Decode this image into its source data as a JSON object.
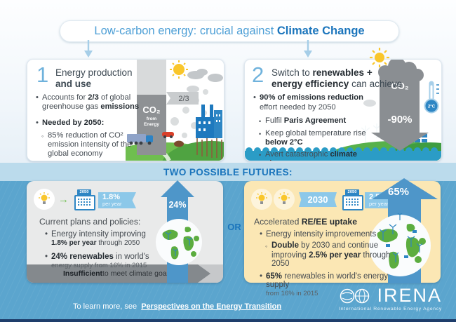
{
  "title": {
    "regular": "Low-carbon energy: crucial against ",
    "bold": "Climate Change"
  },
  "panel1": {
    "number": "1",
    "heading_line1": "Energy production",
    "heading_line2": "and use",
    "b1": [
      {
        "t": "Accounts for "
      },
      {
        "t": "2/3",
        "b": true
      },
      {
        "t": " of global greenhouse gas "
      },
      {
        "t": "emissions",
        "b": true
      }
    ],
    "b2": [
      {
        "t": "Needed by 2050:",
        "b": true
      }
    ],
    "s1": [
      {
        "t": "85% reduction of CO² emission intensity of the global economy"
      }
    ],
    "tower_gas": "CO₂",
    "tower_from": "from",
    "tower_energy": "Energy",
    "fraction": "2/3"
  },
  "panel2": {
    "number": "2",
    "heading_l1": [
      {
        "t": "Switch to "
      },
      {
        "t": "renewables +",
        "b": true
      }
    ],
    "heading_l2": [
      {
        "t": "energy efficiency",
        "b": true
      },
      {
        "t": " can achieve"
      }
    ],
    "b1_l1": [
      {
        "t": "90% of emissions reduction",
        "b": true
      }
    ],
    "b1_l2": [
      {
        "t": "effort needed by 2050"
      }
    ],
    "s1": [
      {
        "t": "Fulfil "
      },
      {
        "t": "Paris Agreement",
        "b": true
      }
    ],
    "s2": [
      {
        "t": "Keep global temperature rise "
      },
      {
        "t": "below 2°C",
        "b": true
      }
    ],
    "s3": [
      {
        "t": "Avert catastrophic "
      },
      {
        "t": "climate change",
        "b": true
      }
    ],
    "arrow_gas": "CO₂",
    "arrow_value": "-90%",
    "thermometer": "2°C"
  },
  "futures_band": "TWO POSSIBLE FUTURES:",
  "or_label": "OR",
  "future_left": {
    "calendar_year": "2050",
    "rate_value": "1.8%",
    "rate_unit": "per year",
    "title": "Current plans and policies:",
    "b1_l1": [
      {
        "t": "Energy intensity improving"
      }
    ],
    "b1_l2": [
      {
        "t": "1.8% per year",
        "b": true
      },
      {
        "t": " through 2050"
      }
    ],
    "b2_l1": [
      {
        "t": "24% renewables",
        "b": true
      },
      {
        "t": " in world's"
      }
    ],
    "b2_l2": "energy supply from 16% in 2015",
    "arrow_value": "24%",
    "verdict": [
      {
        "t": "Insufficient",
        "b": true
      },
      {
        "t": " to meet climate goals"
      }
    ]
  },
  "future_right": {
    "year_badge": "2030",
    "calendar_year": "2050",
    "rate_value": "2.5%",
    "rate_unit": "per year",
    "title": [
      {
        "t": "Accelerated "
      },
      {
        "t": "RE/EE uptake",
        "b": true
      }
    ],
    "b1": [
      {
        "t": "Energy intensity improvements"
      }
    ],
    "s1_l1": [
      {
        "t": "Double",
        "b": true
      },
      {
        "t": " by 2030 and continue"
      }
    ],
    "s1_l2": [
      {
        "t": "improving "
      },
      {
        "t": "2.5% per year",
        "b": true
      },
      {
        "t": " through 2050"
      }
    ],
    "b2_l1": [
      {
        "t": "65%",
        "b": true
      },
      {
        "t": " renewables in world's energy supply"
      }
    ],
    "b2_l2": "from 16% in 2015",
    "arrow_value": "65%"
  },
  "footer": {
    "learn_regular": "To learn more, see  ",
    "learn_link": "Perspectives on the Energy Transition",
    "logo_text": "IRENA",
    "logo_tagline": "International Renewable Energy Agency"
  },
  "colors": {
    "accent_blue": "#1B75BC",
    "light_blue": "#4D9FD6",
    "lower_bg": "#5BA5CE",
    "band_blue": "#BBDBEC",
    "panel_gray": "#E9EAEA",
    "panel_cream": "#FBE7B4",
    "arrow_blue": "#4E96C9",
    "arrow_gray": "#8A8E92",
    "hill_green": "#5FB54A",
    "water_teal": "#2B9CC6",
    "sun_yellow": "#F9C62B",
    "navy_bar": "#1E3D6B"
  }
}
